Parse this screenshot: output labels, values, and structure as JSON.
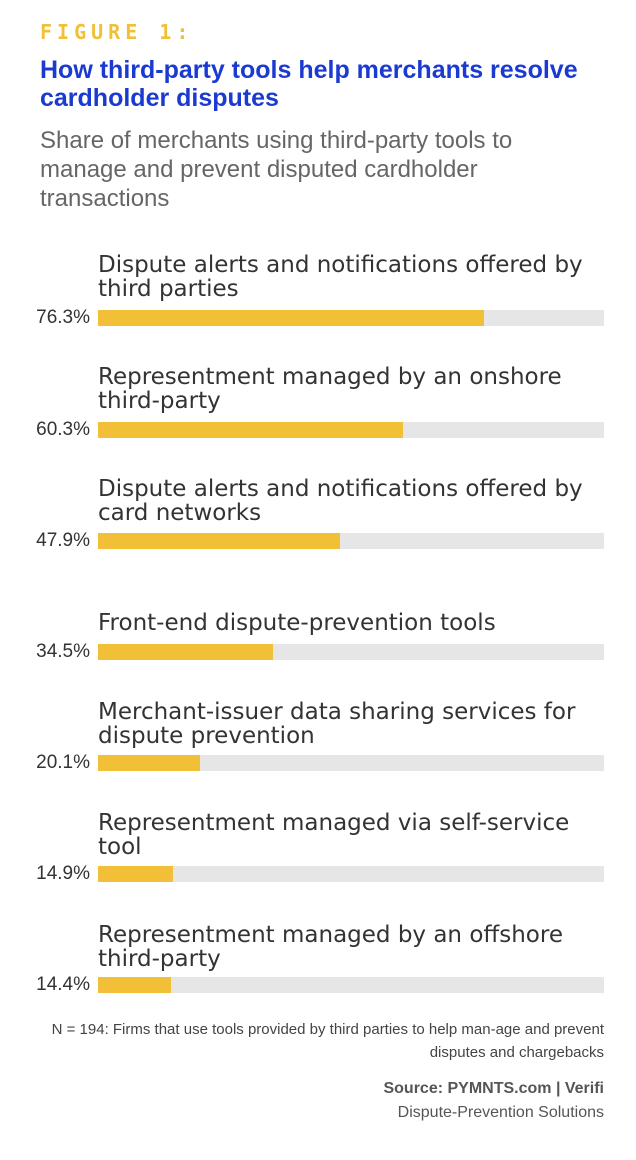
{
  "figure_label": "FIGURE 1:",
  "source": "Source: PYMNTS.com | Verifi",
  "source_sub": "Dispute-Prevention Solutions",
  "note": "N = 194: Firms that use tools provided by third parties to help man-age and prevent disputes and chargebacks",
  "colors": {
    "bar": "#f2c037",
    "track": "#e6e6e6",
    "title": "#1a3ad1"
  },
  "chart_data": {
    "type": "bar",
    "orientation": "horizontal",
    "title": "How third-party tools help merchants resolve cardholder disputes",
    "subtitle": "Share of merchants using third-party tools to manage and prevent disputed cardholder transactions",
    "categories": [
      "Dispute alerts and notifications offered by third parties",
      "Representment managed by an onshore third-party",
      "Dispute alerts and notifications offered by card networks",
      "Front-end dispute-prevention tools",
      "Merchant-issuer data sharing services for dispute prevention",
      "Representment managed via self-service tool",
      "Representment managed by an offshore third-party"
    ],
    "values": [
      76.3,
      60.3,
      47.9,
      34.5,
      20.1,
      14.9,
      14.4
    ],
    "value_labels": [
      "76.3%",
      "60.3%",
      "47.9%",
      "34.5%",
      "20.1%",
      "14.9%",
      "14.4%"
    ],
    "xlim": [
      0,
      100
    ],
    "grid": false
  }
}
